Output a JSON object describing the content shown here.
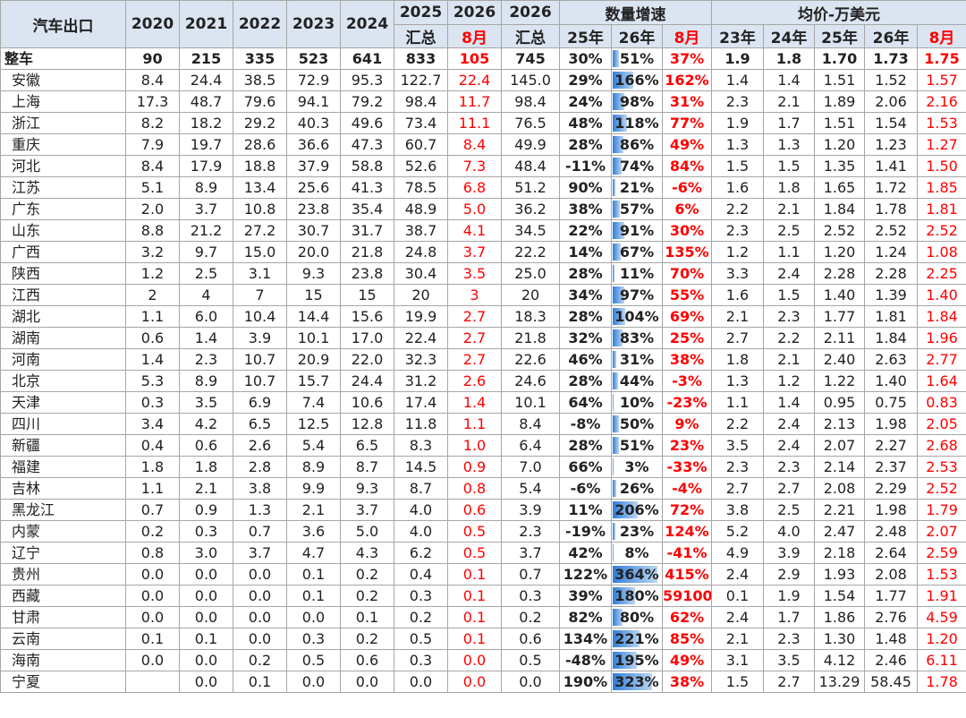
{
  "table": {
    "header": {
      "row1": [
        "汽车出口",
        "2020",
        "2021",
        "2022",
        "2023",
        "2024",
        "2025",
        "2026",
        "2026",
        "数量增速",
        "均价-万美元"
      ],
      "row2": [
        "汇总",
        "8月",
        "汇总",
        "25年",
        "26年",
        "8月",
        "23年",
        "24年",
        "25年",
        "26年",
        "8月"
      ]
    },
    "rows": [
      [
        "整车",
        "90",
        "215",
        "335",
        "523",
        "641",
        "833",
        "105",
        "745",
        "30%",
        "51%",
        "37%",
        "1.9",
        "1.8",
        "1.70",
        "1.73",
        "1.75"
      ],
      [
        "安徽",
        "8.4",
        "24.4",
        "38.5",
        "72.9",
        "95.3",
        "122.7",
        "22.4",
        "145.0",
        "29%",
        "166%",
        "162%",
        "1.4",
        "1.4",
        "1.51",
        "1.52",
        "1.57"
      ],
      [
        "上海",
        "17.3",
        "48.7",
        "79.6",
        "94.1",
        "79.2",
        "98.4",
        "11.7",
        "98.4",
        "24%",
        "98%",
        "31%",
        "2.3",
        "2.1",
        "1.89",
        "2.06",
        "2.16"
      ],
      [
        "浙江",
        "8.2",
        "18.2",
        "29.2",
        "40.3",
        "49.6",
        "73.4",
        "11.1",
        "76.5",
        "48%",
        "118%",
        "77%",
        "1.9",
        "1.7",
        "1.51",
        "1.54",
        "1.53"
      ],
      [
        "重庆",
        "7.9",
        "19.7",
        "28.6",
        "36.6",
        "47.3",
        "60.7",
        "8.4",
        "49.9",
        "28%",
        "86%",
        "49%",
        "1.3",
        "1.3",
        "1.20",
        "1.23",
        "1.27"
      ],
      [
        "河北",
        "8.4",
        "17.9",
        "18.8",
        "37.9",
        "58.8",
        "52.6",
        "7.3",
        "48.4",
        "-11%",
        "74%",
        "84%",
        "1.5",
        "1.5",
        "1.35",
        "1.41",
        "1.50"
      ],
      [
        "江苏",
        "5.1",
        "8.9",
        "13.4",
        "25.6",
        "41.3",
        "78.5",
        "6.8",
        "51.2",
        "90%",
        "21%",
        "-6%",
        "1.6",
        "1.8",
        "1.65",
        "1.72",
        "1.85"
      ],
      [
        "广东",
        "2.0",
        "3.7",
        "10.8",
        "23.8",
        "35.4",
        "48.9",
        "5.0",
        "36.2",
        "38%",
        "57%",
        "6%",
        "2.2",
        "2.1",
        "1.84",
        "1.78",
        "1.81"
      ],
      [
        "山东",
        "8.8",
        "21.2",
        "27.2",
        "30.7",
        "31.7",
        "38.7",
        "4.1",
        "34.5",
        "22%",
        "91%",
        "30%",
        "2.3",
        "2.5",
        "2.52",
        "2.52",
        "2.52"
      ],
      [
        "广西",
        "3.2",
        "9.7",
        "15.0",
        "20.0",
        "21.8",
        "24.8",
        "3.7",
        "22.2",
        "14%",
        "67%",
        "135%",
        "1.2",
        "1.1",
        "1.20",
        "1.24",
        "1.08"
      ],
      [
        "陕西",
        "1.2",
        "2.5",
        "3.1",
        "9.3",
        "23.8",
        "30.4",
        "3.5",
        "25.0",
        "28%",
        "11%",
        "70%",
        "3.3",
        "2.4",
        "2.28",
        "2.28",
        "2.25"
      ],
      [
        "江西",
        "2",
        "4",
        "7",
        "15",
        "15",
        "20",
        "3",
        "20",
        "34%",
        "97%",
        "55%",
        "1.6",
        "1.5",
        "1.40",
        "1.39",
        "1.40"
      ],
      [
        "湖北",
        "1.1",
        "6.0",
        "10.4",
        "14.4",
        "15.6",
        "19.9",
        "2.7",
        "18.3",
        "28%",
        "104%",
        "69%",
        "2.1",
        "2.3",
        "1.77",
        "1.81",
        "1.84"
      ],
      [
        "湖南",
        "0.6",
        "1.4",
        "3.9",
        "10.1",
        "17.0",
        "22.4",
        "2.7",
        "21.8",
        "32%",
        "83%",
        "25%",
        "2.7",
        "2.2",
        "2.11",
        "1.84",
        "1.96"
      ],
      [
        "河南",
        "1.4",
        "2.3",
        "10.7",
        "20.9",
        "22.0",
        "32.3",
        "2.7",
        "22.6",
        "46%",
        "31%",
        "38%",
        "1.8",
        "2.1",
        "2.40",
        "2.63",
        "2.77"
      ],
      [
        "北京",
        "5.3",
        "8.9",
        "10.7",
        "15.7",
        "24.4",
        "31.2",
        "2.6",
        "24.6",
        "28%",
        "44%",
        "-3%",
        "1.3",
        "1.2",
        "1.22",
        "1.40",
        "1.64"
      ],
      [
        "天津",
        "0.3",
        "3.5",
        "6.9",
        "7.4",
        "10.6",
        "17.4",
        "1.4",
        "10.1",
        "64%",
        "10%",
        "-23%",
        "1.1",
        "1.4",
        "0.95",
        "0.75",
        "0.83"
      ],
      [
        "四川",
        "3.4",
        "4.2",
        "6.5",
        "12.5",
        "12.8",
        "11.8",
        "1.1",
        "8.4",
        "-8%",
        "50%",
        "9%",
        "2.2",
        "2.4",
        "2.13",
        "1.98",
        "2.05"
      ],
      [
        "新疆",
        "0.4",
        "0.6",
        "2.6",
        "5.4",
        "6.5",
        "8.3",
        "1.0",
        "6.4",
        "28%",
        "51%",
        "23%",
        "3.5",
        "2.4",
        "2.07",
        "2.27",
        "2.68"
      ],
      [
        "福建",
        "1.8",
        "1.8",
        "2.8",
        "8.9",
        "8.7",
        "14.5",
        "0.9",
        "7.0",
        "66%",
        "3%",
        "-33%",
        "2.3",
        "2.3",
        "2.14",
        "2.37",
        "2.53"
      ],
      [
        "吉林",
        "1.1",
        "2.1",
        "3.8",
        "9.9",
        "9.3",
        "8.7",
        "0.8",
        "5.4",
        "-6%",
        "26%",
        "-4%",
        "2.7",
        "2.7",
        "2.08",
        "2.29",
        "2.52"
      ],
      [
        "黑龙江",
        "0.7",
        "0.9",
        "1.3",
        "2.1",
        "3.7",
        "4.0",
        "0.6",
        "3.9",
        "11%",
        "206%",
        "72%",
        "3.8",
        "2.5",
        "2.21",
        "1.98",
        "1.79"
      ],
      [
        "内蒙",
        "0.2",
        "0.3",
        "0.7",
        "3.6",
        "5.0",
        "4.0",
        "0.5",
        "2.3",
        "-19%",
        "23%",
        "124%",
        "5.2",
        "4.0",
        "2.47",
        "2.48",
        "2.07"
      ],
      [
        "辽宁",
        "0.8",
        "3.0",
        "3.7",
        "4.7",
        "4.3",
        "6.2",
        "0.5",
        "3.7",
        "42%",
        "8%",
        "-41%",
        "4.9",
        "3.9",
        "2.18",
        "2.64",
        "2.59"
      ],
      [
        "贵州",
        "0.0",
        "0.0",
        "0.0",
        "0.1",
        "0.2",
        "0.4",
        "0.1",
        "0.7",
        "122%",
        "364%",
        "415%",
        "2.4",
        "2.9",
        "1.93",
        "2.08",
        "1.53"
      ],
      [
        "西藏",
        "0.0",
        "0.0",
        "0.0",
        "0.1",
        "0.2",
        "0.3",
        "0.1",
        "0.3",
        "39%",
        "180%",
        "59100%",
        "0.1",
        "1.9",
        "1.54",
        "1.77",
        "1.91"
      ],
      [
        "甘肃",
        "0.0",
        "0.0",
        "0.0",
        "0.0",
        "0.1",
        "0.2",
        "0.1",
        "0.2",
        "82%",
        "80%",
        "62%",
        "2.4",
        "1.7",
        "1.86",
        "2.76",
        "4.59"
      ],
      [
        "云南",
        "0.1",
        "0.1",
        "0.0",
        "0.3",
        "0.2",
        "0.5",
        "0.1",
        "0.6",
        "134%",
        "221%",
        "85%",
        "2.1",
        "2.3",
        "1.30",
        "1.48",
        "1.20"
      ],
      [
        "海南",
        "0.0",
        "0.0",
        "0.2",
        "0.5",
        "0.6",
        "0.3",
        "0.0",
        "0.5",
        "-48%",
        "195%",
        "49%",
        "3.1",
        "3.5",
        "4.12",
        "2.46",
        "6.11"
      ],
      [
        "宁夏",
        null,
        "0.0",
        "0.1",
        "0.0",
        "0.0",
        "0.0",
        "0.0",
        "0.0",
        "190%",
        "323%",
        "38%",
        "1.5",
        "2.7",
        "13.29",
        "58.45",
        "1.78"
      ]
    ]
  }
}
